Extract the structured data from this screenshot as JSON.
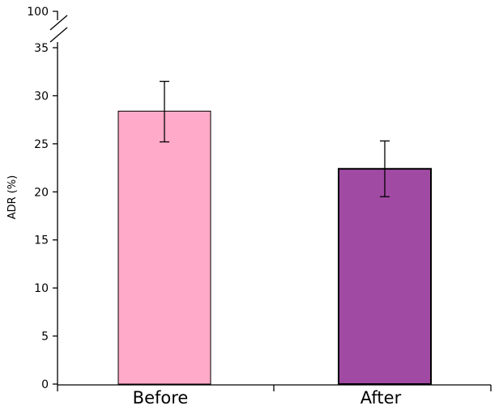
{
  "chart_data": {
    "type": "bar",
    "title": "",
    "xlabel": "",
    "ylabel": "ADR (%)",
    "categories": [
      "Before",
      "After"
    ],
    "values": [
      28.4,
      22.4
    ],
    "error_low": [
      25.2,
      19.5
    ],
    "error_high": [
      31.5,
      25.3
    ],
    "colors": [
      "#ffaac8",
      "#a14aa3"
    ],
    "ylim": [
      0,
      35
    ],
    "yticks": [
      "0",
      "5",
      "10",
      "15",
      "20",
      "25",
      "30",
      "35"
    ],
    "axis_break_top_tick": "100",
    "grid": false
  }
}
